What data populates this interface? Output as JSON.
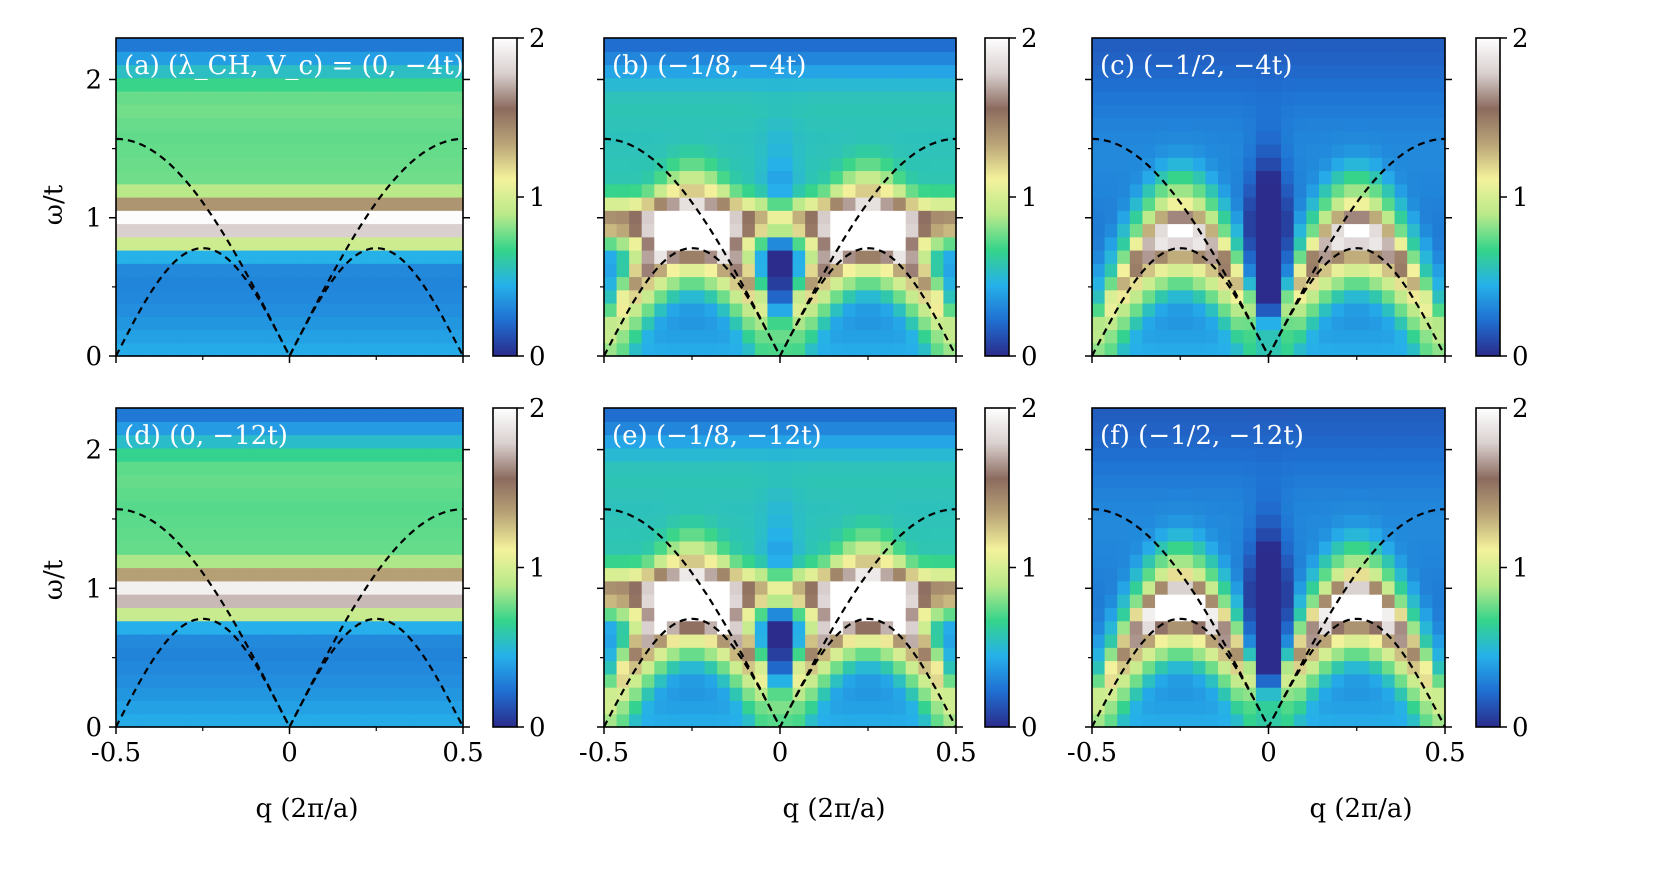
{
  "colorscale": [
    "#2b2c8c",
    "#1f6fd1",
    "#26b0ea",
    "#35d48a",
    "#b9e98a",
    "#f4f29c",
    "#b9a477",
    "#8c6b5f",
    "#d9d0cf",
    "#ffffff"
  ],
  "figure": {
    "y_axis_label": "ω/t",
    "x_axis_label": "q (2π/a)"
  },
  "chart_data": [
    {
      "type": "heatmap",
      "label": "(a) (λ_CH, V_c) = (0, −4t)",
      "xlim": [
        -0.5,
        0.5
      ],
      "ylim": [
        0,
        2.3
      ],
      "xticks": [
        "-0.5",
        "0",
        "0.5"
      ],
      "yticks": [
        "0",
        "1",
        "2"
      ],
      "colorbar": {
        "range": [
          0,
          2
        ],
        "ticks": [
          "0",
          "1",
          "2"
        ]
      },
      "band": {
        "center": 0.97,
        "peak": 1.55
      },
      "humps": {
        "peak": 0
      },
      "dip": 0,
      "dashed_curves": {
        "upper_max": 1.57,
        "lower_max": 0.78
      }
    },
    {
      "type": "heatmap",
      "label": "(b) (−1/8, −4t)",
      "xlim": [
        -0.5,
        0.5
      ],
      "ylim": [
        0,
        2.3
      ],
      "xticks": [
        "-0.5",
        "0",
        "0.5"
      ],
      "yticks": [
        "0",
        "1",
        "2"
      ],
      "colorbar": {
        "range": [
          0,
          2
        ],
        "ticks": [
          "0",
          "1",
          "2"
        ]
      },
      "band": {
        "center": 0.97,
        "peak": 1.05
      },
      "humps": {
        "peak": 1.85
      },
      "dip": 0.5,
      "dashed_curves": {
        "upper_max": 1.57,
        "lower_max": 0.78
      }
    },
    {
      "type": "heatmap",
      "label": "(c) (−1/2, −4t)",
      "xlim": [
        -0.5,
        0.5
      ],
      "ylim": [
        0,
        2.3
      ],
      "xticks": [
        "-0.5",
        "0",
        "0.5"
      ],
      "yticks": [
        "0",
        "1",
        "2"
      ],
      "colorbar": {
        "range": [
          0,
          2
        ],
        "ticks": [
          "0",
          "1",
          "2"
        ]
      },
      "band": {
        "center": 0.97,
        "peak": 0
      },
      "humps": {
        "peak": 1.7
      },
      "dip": 0.9,
      "dashed_curves": {
        "upper_max": 1.57,
        "lower_max": 0.78
      }
    },
    {
      "type": "heatmap",
      "label": "(d) (0, −12t)",
      "xlim": [
        -0.5,
        0.5
      ],
      "ylim": [
        0,
        2.3
      ],
      "xticks": [
        "-0.5",
        "0",
        "0.5"
      ],
      "yticks": [
        "0",
        "1",
        "2"
      ],
      "colorbar": {
        "range": [
          0,
          2
        ],
        "ticks": [
          "0",
          "1",
          "2"
        ]
      },
      "band": {
        "center": 0.97,
        "peak": 1.5
      },
      "humps": {
        "peak": 0
      },
      "dip": 0,
      "dashed_curves": {
        "upper_max": 1.57,
        "lower_max": 0.78
      }
    },
    {
      "type": "heatmap",
      "label": "(e) (−1/8, −12t)",
      "xlim": [
        -0.5,
        0.5
      ],
      "ylim": [
        0,
        2.3
      ],
      "xticks": [
        "-0.5",
        "0",
        "0.5"
      ],
      "yticks": [
        "0",
        "1",
        "2"
      ],
      "colorbar": {
        "range": [
          0,
          2
        ],
        "ticks": [
          "0",
          "1",
          "2"
        ]
      },
      "band": {
        "center": 0.97,
        "peak": 1.05
      },
      "humps": {
        "peak": 2.0
      },
      "dip": 0.5,
      "dashed_curves": {
        "upper_max": 1.57,
        "lower_max": 0.78
      }
    },
    {
      "type": "heatmap",
      "label": "(f) (−1/2, −12t)",
      "xlim": [
        -0.5,
        0.5
      ],
      "ylim": [
        0,
        2.3
      ],
      "xticks": [
        "-0.5",
        "0",
        "0.5"
      ],
      "yticks": [
        "0",
        "1",
        "2"
      ],
      "colorbar": {
        "range": [
          0,
          2
        ],
        "ticks": [
          "0",
          "1",
          "2"
        ]
      },
      "band": {
        "center": 0.97,
        "peak": 0
      },
      "humps": {
        "peak": 1.95
      },
      "dip": 0.9,
      "dashed_curves": {
        "upper_max": 1.57,
        "lower_max": 0.78
      }
    }
  ]
}
